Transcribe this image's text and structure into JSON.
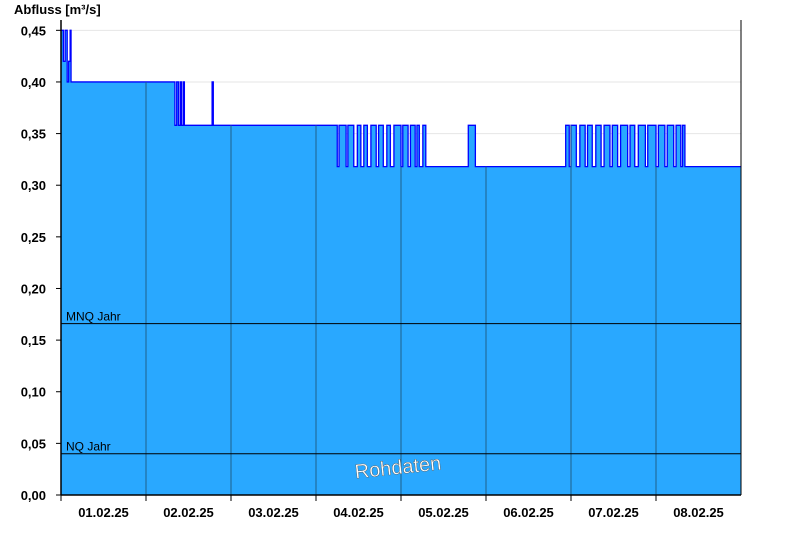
{
  "chart_data": {
    "type": "area",
    "ylabel": "Abfluss [m³/s]",
    "ylim": [
      0,
      0.46
    ],
    "yticks": [
      "0,00",
      "0,05",
      "0,10",
      "0,15",
      "0,20",
      "0,25",
      "0,30",
      "0,35",
      "0,40",
      "0,45"
    ],
    "xlim": [
      "01.02.25 00:00",
      "09.02.25 00:00"
    ],
    "xticks": [
      "01.02.25",
      "02.02.25",
      "03.02.25",
      "04.02.25",
      "05.02.25",
      "06.02.25",
      "07.02.25",
      "08.02.25"
    ],
    "grid": true,
    "fill_color": "#29a8ff",
    "line_color": "#0000ff",
    "series": [
      {
        "points": [
          [
            "01.02.25 00:00",
            0.45
          ],
          [
            "01.02.25 00:40",
            0.42
          ],
          [
            "01.02.25 01:10",
            0.45
          ],
          [
            "01.02.25 01:45",
            0.4
          ],
          [
            "01.02.25 02:10",
            0.42
          ],
          [
            "01.02.25 02:35",
            0.45
          ],
          [
            "01.02.25 02:50",
            0.4
          ],
          [
            "02.02.25 08:10",
            0.358
          ],
          [
            "02.02.25 08:40",
            0.4
          ],
          [
            "02.02.25 09:10",
            0.358
          ],
          [
            "02.02.25 09:40",
            0.4
          ],
          [
            "02.02.25 10:00",
            0.358
          ],
          [
            "02.02.25 10:30",
            0.4
          ],
          [
            "02.02.25 10:50",
            0.358
          ],
          [
            "02.02.25 18:40",
            0.4
          ],
          [
            "02.02.25 19:00",
            0.358
          ],
          [
            "04.02.25 06:00",
            0.318
          ],
          [
            "04.02.25 06:30",
            0.358
          ],
          [
            "04.02.25 08:30",
            0.318
          ],
          [
            "04.02.25 09:00",
            0.358
          ],
          [
            "04.02.25 10:40",
            0.318
          ],
          [
            "04.02.25 11:40",
            0.358
          ],
          [
            "04.02.25 12:40",
            0.318
          ],
          [
            "04.02.25 13:30",
            0.358
          ],
          [
            "04.02.25 14:30",
            0.318
          ],
          [
            "04.02.25 15:30",
            0.358
          ],
          [
            "04.02.25 17:00",
            0.318
          ],
          [
            "04.02.25 17:40",
            0.358
          ],
          [
            "04.02.25 19:00",
            0.318
          ],
          [
            "04.02.25 20:00",
            0.358
          ],
          [
            "04.02.25 21:00",
            0.318
          ],
          [
            "04.02.25 22:00",
            0.358
          ],
          [
            "05.02.25 00:00",
            0.318
          ],
          [
            "05.02.25 00:30",
            0.358
          ],
          [
            "05.02.25 02:00",
            0.318
          ],
          [
            "05.02.25 02:40",
            0.358
          ],
          [
            "05.02.25 04:00",
            0.318
          ],
          [
            "05.02.25 04:30",
            0.358
          ],
          [
            "05.02.25 05:10",
            0.318
          ],
          [
            "05.02.25 06:10",
            0.358
          ],
          [
            "05.02.25 07:00",
            0.318
          ],
          [
            "05.02.25 19:00",
            0.358
          ],
          [
            "05.02.25 21:00",
            0.318
          ],
          [
            "06.02.25 22:30",
            0.358
          ],
          [
            "06.02.25 23:30",
            0.318
          ],
          [
            "07.02.25 00:00",
            0.358
          ],
          [
            "07.02.25 01:30",
            0.318
          ],
          [
            "07.02.25 02:30",
            0.358
          ],
          [
            "07.02.25 04:00",
            0.318
          ],
          [
            "07.02.25 04:40",
            0.358
          ],
          [
            "07.02.25 06:00",
            0.318
          ],
          [
            "07.02.25 07:00",
            0.358
          ],
          [
            "07.02.25 08:30",
            0.318
          ],
          [
            "07.02.25 09:20",
            0.358
          ],
          [
            "07.02.25 11:00",
            0.318
          ],
          [
            "07.02.25 11:40",
            0.358
          ],
          [
            "07.02.25 13:10",
            0.318
          ],
          [
            "07.02.25 14:00",
            0.358
          ],
          [
            "07.02.25 16:00",
            0.318
          ],
          [
            "07.02.25 16:40",
            0.358
          ],
          [
            "07.02.25 18:00",
            0.318
          ],
          [
            "07.02.25 19:00",
            0.358
          ],
          [
            "07.02.25 21:00",
            0.318
          ],
          [
            "07.02.25 21:40",
            0.358
          ],
          [
            "08.02.25 00:00",
            0.318
          ],
          [
            "08.02.25 00:40",
            0.358
          ],
          [
            "08.02.25 02:30",
            0.318
          ],
          [
            "08.02.25 03:10",
            0.358
          ],
          [
            "08.02.25 05:00",
            0.318
          ],
          [
            "08.02.25 05:40",
            0.358
          ],
          [
            "08.02.25 07:00",
            0.318
          ],
          [
            "08.02.25 07:30",
            0.358
          ],
          [
            "08.02.25 08:10",
            0.318
          ],
          [
            "09.02.25 00:00",
            0.318
          ]
        ]
      }
    ],
    "reference_lines": [
      {
        "label": "MNQ Jahr",
        "value": 0.166
      },
      {
        "label": "NQ Jahr",
        "value": 0.04
      }
    ],
    "watermark": "Rohdaten"
  }
}
